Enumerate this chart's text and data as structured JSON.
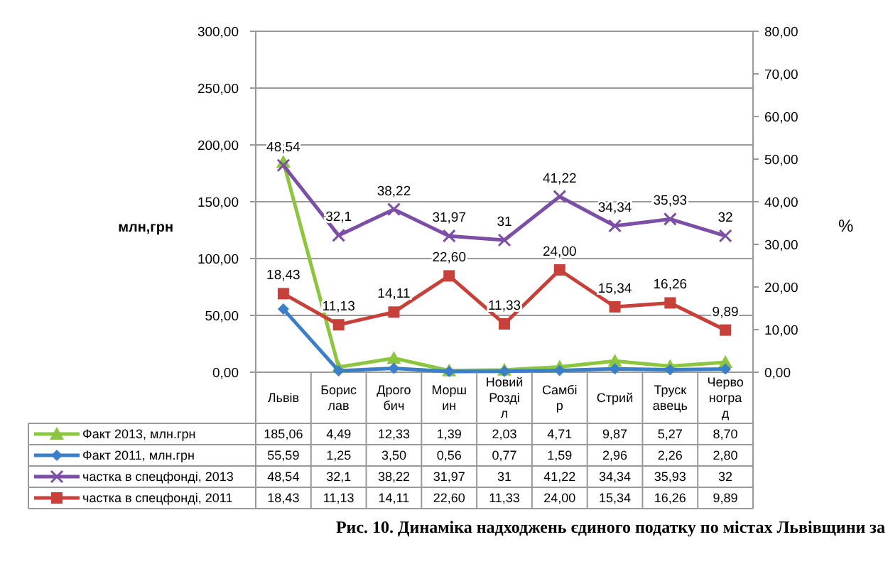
{
  "chart_data": {
    "type": "line",
    "title": "Рис. 10. Динаміка надходжень єдиного податку по містах Львівщини за",
    "ylabel": "млн,грн",
    "y2label": "%",
    "categories": [
      "Львів",
      "Борис\nлав",
      "Дрого\nбич",
      "Морш\nин",
      "Новий\nРозді\nл",
      "Самбі\nр",
      "Стрий",
      "Труск\nавець",
      "Черво\nногра\nд"
    ],
    "series": [
      {
        "name": "Факт 2013, млн.грн",
        "color": "#8cc63e",
        "marker": "triangle",
        "values": [
          185.06,
          4.49,
          12.33,
          1.39,
          2.03,
          4.71,
          9.87,
          5.27,
          8.7
        ],
        "value_labels": [
          "185,06",
          "4,49",
          "12,33",
          "1,39",
          "2,03",
          "4,71",
          "9,87",
          "5,27",
          "8,70"
        ]
      },
      {
        "name": "Факт 2011, млн.грн",
        "color": "#3a7fc8",
        "marker": "diamond",
        "values": [
          55.59,
          1.25,
          3.5,
          0.56,
          0.77,
          1.59,
          2.96,
          2.26,
          2.8
        ],
        "value_labels": [
          "55,59",
          "1,25",
          "3,50",
          "0,56",
          "0,77",
          "1,59",
          "2,96",
          "2,26",
          "2,80"
        ]
      },
      {
        "name": "частка в спецфонді, 2013",
        "color": "#7c4fa6",
        "marker": "cross",
        "axis": "y2",
        "values": [
          48.54,
          32.1,
          38.22,
          31.97,
          31,
          41.22,
          34.34,
          35.93,
          32
        ],
        "value_labels": [
          "48,54",
          "32,1",
          "38,22",
          "31,97",
          "31",
          "41,22",
          "34,34",
          "35,93",
          "32"
        ]
      },
      {
        "name": "частка в спецфонді, 2011",
        "color": "#c8403a",
        "marker": "square",
        "axis": "y2",
        "values": [
          18.43,
          11.13,
          14.11,
          22.6,
          11.33,
          24.0,
          15.34,
          16.26,
          9.89
        ],
        "value_labels": [
          "18,43",
          "11,13",
          "14,11",
          "22,60",
          "11,33",
          "24,00",
          "15,34",
          "16,26",
          "9,89"
        ]
      }
    ],
    "ylim": [
      0,
      300
    ],
    "yticks": [
      {
        "value": 0,
        "label": "0,00"
      },
      {
        "value": 50,
        "label": "50,00"
      },
      {
        "value": 100,
        "label": "100,00"
      },
      {
        "value": 150,
        "label": "150,00"
      },
      {
        "value": 200,
        "label": "200,00"
      },
      {
        "value": 250,
        "label": "250,00"
      },
      {
        "value": 300,
        "label": "300,00"
      }
    ],
    "y2lim": [
      0,
      80
    ],
    "y2ticks": [
      {
        "value": 0,
        "label": "0,00"
      },
      {
        "value": 10,
        "label": "10,00"
      },
      {
        "value": 20,
        "label": "20,00"
      },
      {
        "value": 30,
        "label": "30,00"
      },
      {
        "value": 40,
        "label": "40,00"
      },
      {
        "value": 50,
        "label": "50,00"
      },
      {
        "value": 60,
        "label": "60,00"
      },
      {
        "value": 70,
        "label": "70,00"
      },
      {
        "value": 80,
        "label": "80,00"
      }
    ],
    "grid": "y",
    "legend": "bottom"
  }
}
